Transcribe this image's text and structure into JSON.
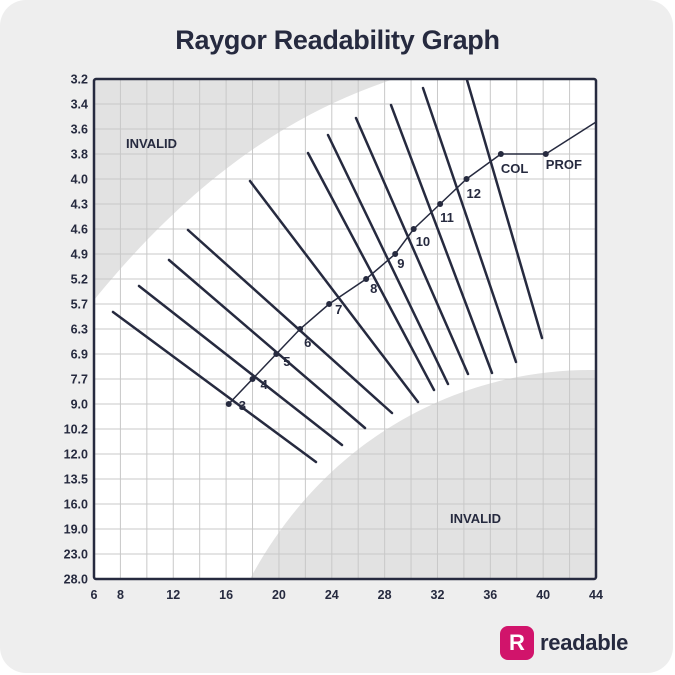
{
  "chart_data": {
    "type": "line",
    "title": "Raygor Readability Graph",
    "x_ticks": [
      "6",
      "8",
      "12",
      "16",
      "20",
      "24",
      "28",
      "32",
      "36",
      "40",
      "44"
    ],
    "y_ticks": [
      "3.2",
      "3.4",
      "3.6",
      "3.8",
      "4.0",
      "4.3",
      "4.6",
      "4.9",
      "5.2",
      "5.7",
      "6.3",
      "6.9",
      "7.7",
      "9.0",
      "10.2",
      "12.0",
      "13.5",
      "16.0",
      "19.0",
      "23.0",
      "28.0"
    ],
    "region_labels": [
      "INVALID",
      "INVALID"
    ],
    "grade_curve": [
      {
        "x": 16.2,
        "y": "9.0",
        "label": "3"
      },
      {
        "x": 18.0,
        "y": "7.7",
        "label": "4"
      },
      {
        "x": 19.8,
        "y": "6.9",
        "label": "5"
      },
      {
        "x": 21.6,
        "y": "6.3",
        "label": "6"
      },
      {
        "x": 23.8,
        "y": "5.7",
        "label": "7"
      },
      {
        "x": 26.6,
        "y": "5.2",
        "label": "8"
      },
      {
        "x": 28.8,
        "y": "4.9",
        "label": "9"
      },
      {
        "x": 30.2,
        "y": "4.6",
        "label": "10"
      },
      {
        "x": 32.2,
        "y": "4.3",
        "label": "11"
      },
      {
        "x": 34.2,
        "y": "4.0",
        "label": "12"
      },
      {
        "x": 36.8,
        "y": "3.8",
        "label": "COL"
      },
      {
        "x": 40.2,
        "y": "3.8",
        "label": "PROF"
      }
    ]
  },
  "brand": {
    "logo_letter": "R",
    "name": "readable",
    "color": "#d1146b"
  },
  "colors": {
    "ink": "#262a3f",
    "grid": "#c8c8c8",
    "invalid": "#e2e2e2"
  }
}
